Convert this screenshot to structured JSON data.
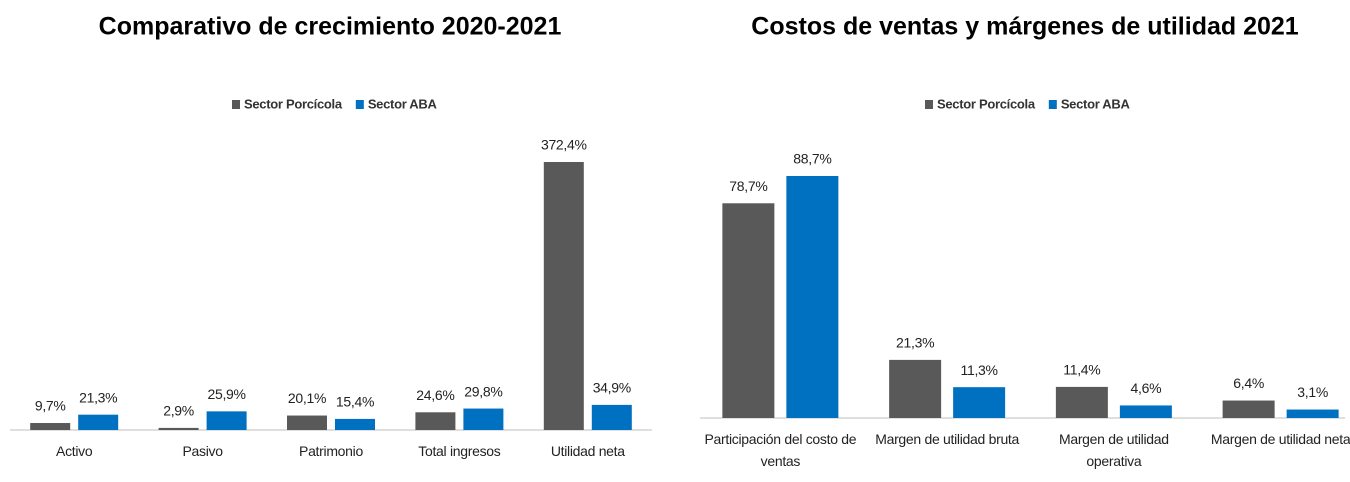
{
  "chart_data": [
    {
      "type": "bar",
      "title": "Comparativo de crecimiento 2020-2021",
      "categories": [
        "Activo",
        "Pasivo",
        "Patrimonio",
        "Total ingresos",
        "Utilidad neta"
      ],
      "series": [
        {
          "name": "Sector Porcícola",
          "color": "#595959",
          "values": [
            9.7,
            2.9,
            20.1,
            24.6,
            372.4
          ],
          "value_labels": [
            "9,7%",
            "2,9%",
            "20,1%",
            "24,6%",
            "372,4%"
          ]
        },
        {
          "name": "Sector ABA",
          "color": "#0070c0",
          "values": [
            21.3,
            25.9,
            15.4,
            29.8,
            34.9
          ],
          "value_labels": [
            "21,3%",
            "25,9%",
            "15,4%",
            "29,8%",
            "34,9%"
          ]
        }
      ]
    },
    {
      "type": "bar",
      "title": "Costos de ventas y márgenes de utilidad 2021",
      "categories": [
        "Participación del costo de ventas",
        "Margen de utilidad bruta",
        "Margen de utilidad operativa",
        "Margen de utilidad neta"
      ],
      "series": [
        {
          "name": "Sector Porcícola",
          "color": "#595959",
          "values": [
            78.7,
            21.3,
            11.4,
            6.4
          ],
          "value_labels": [
            "78,7%",
            "21,3%",
            "11,4%",
            "6,4%"
          ]
        },
        {
          "name": "Sector ABA",
          "color": "#0070c0",
          "values": [
            88.7,
            11.3,
            4.6,
            3.1
          ],
          "value_labels": [
            "88,7%",
            "11,3%",
            "4,6%",
            "3,1%"
          ]
        }
      ]
    }
  ]
}
